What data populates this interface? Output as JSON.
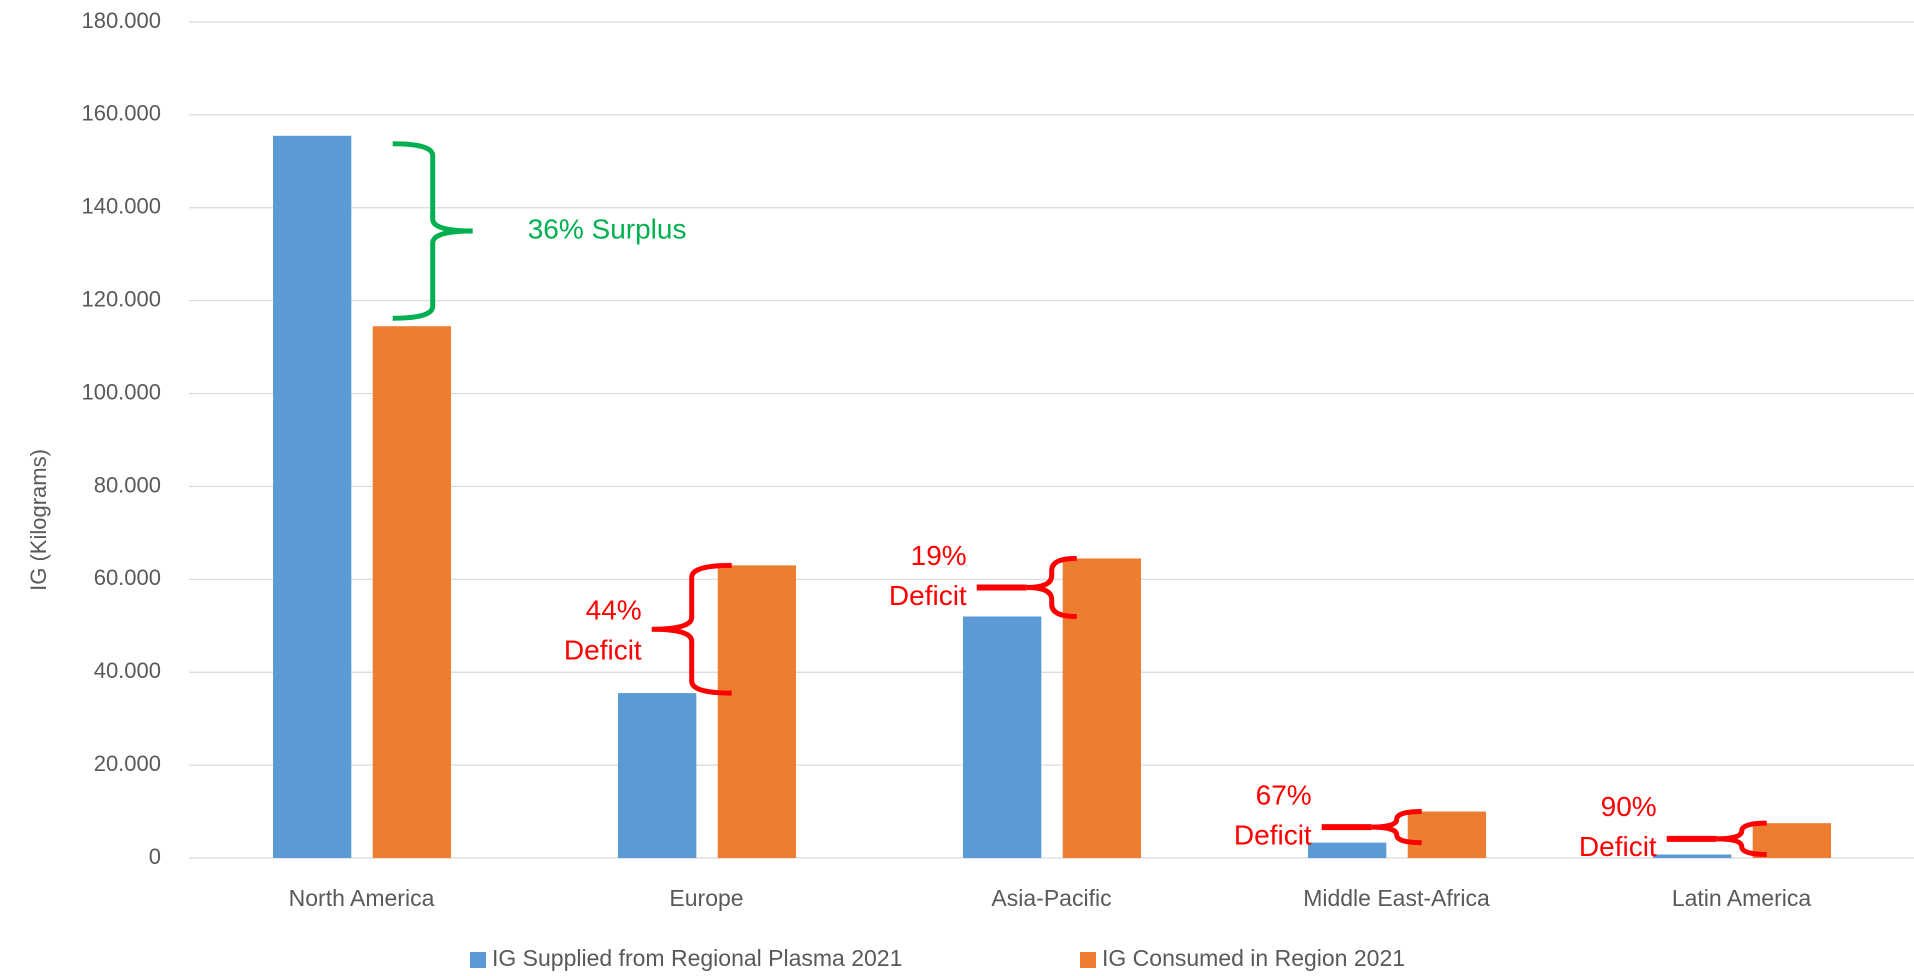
{
  "chart_data": {
    "type": "bar",
    "y_label": "IG (Kilograms)",
    "categories": [
      "North America",
      "Europe",
      "Asia-Pacific",
      "Middle East-Africa",
      "Latin America"
    ],
    "series": [
      {
        "name": "IG Supplied from Regional Plasma 2021",
        "color": "#5b9bd5",
        "values": [
          155500,
          35500,
          52000,
          3300,
          750
        ]
      },
      {
        "name": "IG Consumed in Region 2021",
        "color": "#ed7d31",
        "values": [
          114500,
          63000,
          64500,
          10000,
          7500
        ]
      }
    ],
    "ylim": [
      0,
      180000
    ],
    "yticks": [
      0,
      {
        "value": 20000,
        "label": "20.000"
      },
      {
        "value": 40000,
        "label": "40.000"
      },
      {
        "value": 60000,
        "label": "60.000"
      },
      {
        "value": 80000,
        "label": "80.000"
      },
      {
        "value": 100000,
        "label": "100.000"
      },
      {
        "value": 120000,
        "label": "120.000"
      },
      {
        "value": 140000,
        "label": "140.000"
      },
      {
        "value": 160000,
        "label": "160.000"
      },
      {
        "value": 180000,
        "label": "180.000"
      }
    ],
    "grid": true,
    "legend": "bottom",
    "annotations": [
      {
        "lines": [
          "36% Surplus"
        ],
        "color": "#00b050"
      },
      {
        "lines": [
          "44%",
          "Deficit"
        ],
        "color": "#ff0000"
      },
      {
        "lines": [
          "19%",
          "Deficit"
        ],
        "color": "#ff0000"
      },
      {
        "lines": [
          "67%",
          "Deficit"
        ],
        "color": "#ff0000"
      },
      {
        "lines": [
          "90%",
          "Deficit"
        ],
        "color": "#ff0000"
      }
    ]
  }
}
